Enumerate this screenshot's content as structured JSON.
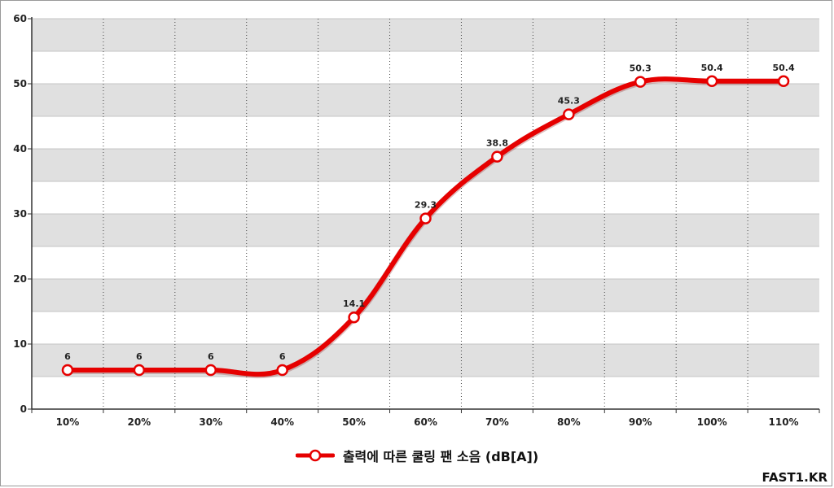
{
  "chart_data": {
    "type": "line",
    "categories": [
      "10%",
      "20%",
      "30%",
      "40%",
      "50%",
      "60%",
      "70%",
      "80%",
      "90%",
      "100%",
      "110%"
    ],
    "series": [
      {
        "name": "출력에 따른 쿨링 팬 소음 (dB[A])",
        "values": [
          6,
          6,
          6,
          6,
          14.1,
          29.3,
          38.8,
          45.3,
          50.3,
          50.4,
          50.4
        ],
        "data_labels": [
          "6",
          "6",
          "6",
          "6",
          "14.1",
          "29.3",
          "38.8",
          "45.3",
          "50.3",
          "50.4",
          "50.4"
        ]
      }
    ],
    "ylim": [
      0,
      60
    ],
    "yticks": [
      "0",
      "10",
      "20",
      "30",
      "40",
      "50",
      "60"
    ],
    "grid": "horizontal bands, dotted vertical lines",
    "legend_position": "bottom-center",
    "xlabel": "",
    "ylabel": ""
  },
  "colors": {
    "line": "#e60000",
    "marker_fill": "#ffffff",
    "band": "#e0e0e0",
    "vertical_grid": "#444444"
  },
  "watermark": "FAST1.KR"
}
